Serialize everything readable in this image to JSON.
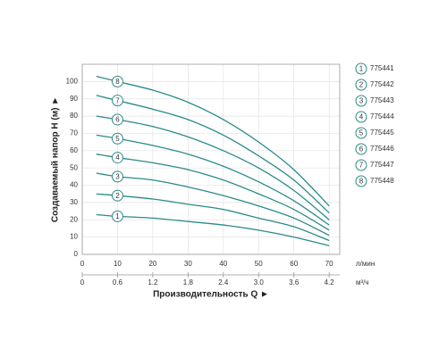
{
  "chart_data": {
    "type": "line",
    "y_label": "Создаваемый напор H (м) ►",
    "x_label": "Производительность Q ►",
    "x_unit": "л/мин",
    "x2_unit": "м³/ч",
    "x": [
      4,
      10,
      20,
      30,
      40,
      50,
      60,
      70
    ],
    "series": [
      {
        "name": "775441",
        "marker": "1",
        "color": "#2a8a8a",
        "values": [
          23,
          22,
          21,
          19,
          17,
          14,
          10,
          5
        ]
      },
      {
        "name": "775442",
        "marker": "2",
        "color": "#2a8a8a",
        "values": [
          35,
          34,
          32,
          29,
          26,
          21,
          16,
          8
        ]
      },
      {
        "name": "775443",
        "marker": "3",
        "color": "#2a8a8a",
        "values": [
          47,
          45,
          43,
          39,
          34,
          28,
          21,
          11
        ]
      },
      {
        "name": "775444",
        "marker": "4",
        "color": "#2a8a8a",
        "values": [
          58,
          56,
          53,
          49,
          43,
          35,
          26,
          14
        ]
      },
      {
        "name": "775445",
        "marker": "5",
        "color": "#2a8a8a",
        "values": [
          69,
          67,
          63,
          58,
          51,
          42,
          31,
          17
        ]
      },
      {
        "name": "775446",
        "marker": "6",
        "color": "#2a8a8a",
        "values": [
          80,
          78,
          74,
          68,
          60,
          50,
          37,
          20
        ]
      },
      {
        "name": "775447",
        "marker": "7",
        "color": "#2a8a8a",
        "values": [
          92,
          89,
          84,
          78,
          69,
          57,
          43,
          24
        ]
      },
      {
        "name": "775448",
        "marker": "8",
        "color": "#2a8a8a",
        "values": [
          103,
          100,
          95,
          88,
          78,
          65,
          49,
          28
        ]
      }
    ],
    "xlim": [
      0,
      73
    ],
    "xticks": [
      0,
      10,
      20,
      30,
      40,
      50,
      60,
      70
    ],
    "x2lim": [
      0,
      4.38
    ],
    "x2ticks": [
      0,
      0.6,
      1.2,
      1.8,
      2.4,
      {
        "value": 3.0,
        "label": "3.0"
      },
      3.6,
      4.2
    ],
    "ylim": [
      0,
      110
    ],
    "yticks": [
      0,
      10,
      20,
      30,
      40,
      50,
      60,
      70,
      80,
      90,
      100
    ],
    "grid": true
  }
}
